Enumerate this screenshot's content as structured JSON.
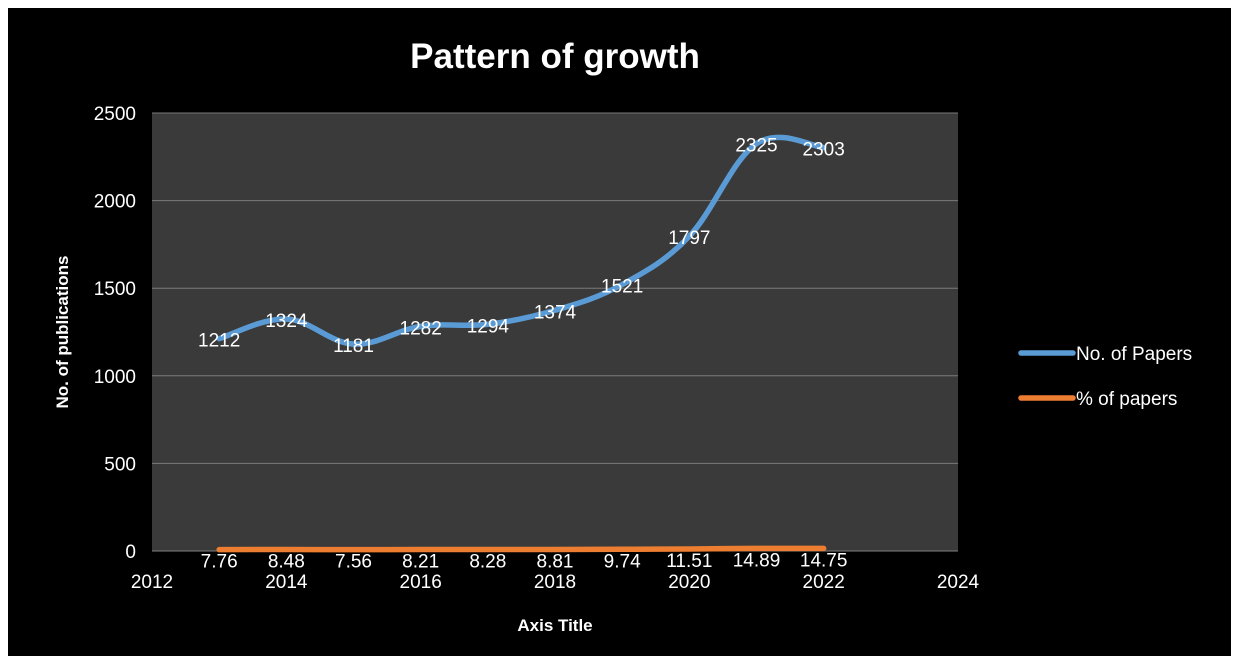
{
  "chart_data": {
    "type": "line",
    "title": "Pattern of growth",
    "xlabel": "Axis Title",
    "ylabel": "No. of publications",
    "xlim": [
      2012,
      2024
    ],
    "ylim": [
      0,
      2500
    ],
    "x_ticks": [
      2012,
      2014,
      2016,
      2018,
      2020,
      2022,
      2024
    ],
    "y_ticks": [
      0,
      500,
      1000,
      1500,
      2000,
      2500
    ],
    "grid": true,
    "legend_position": "right",
    "x": [
      2013,
      2014,
      2015,
      2016,
      2017,
      2018,
      2019,
      2020,
      2021,
      2022
    ],
    "series": [
      {
        "name": "No. of Papers",
        "color": "#5b9bd5",
        "values": [
          1212,
          1324,
          1181,
          1282,
          1294,
          1374,
          1521,
          1797,
          2325,
          2303
        ],
        "labels": [
          "1212",
          "1324",
          "1181",
          "1282",
          "1294",
          "1374",
          "1521",
          "1797",
          "2325",
          "2303"
        ]
      },
      {
        "name": "% of papers",
        "color": "#ed7d31",
        "values": [
          7.76,
          8.48,
          7.56,
          8.21,
          8.28,
          8.81,
          9.74,
          11.51,
          14.89,
          14.75
        ],
        "labels": [
          "7.76",
          "8.48",
          "7.56",
          "8.21",
          "8.28",
          "8.81",
          "9.74",
          "11.51",
          "14.89",
          "14.75"
        ]
      }
    ]
  }
}
